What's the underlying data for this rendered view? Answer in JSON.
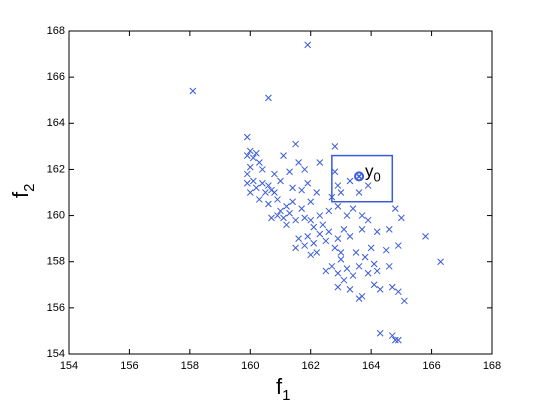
{
  "chart_data": {
    "type": "scatter",
    "xlabel": {
      "text": "f",
      "subscript": "1"
    },
    "ylabel": {
      "text": "f",
      "subscript": "2"
    },
    "xlim": [
      154,
      168
    ],
    "ylim": [
      154,
      168
    ],
    "xticks": [
      154,
      156,
      158,
      160,
      162,
      164,
      166,
      168
    ],
    "yticks": [
      154,
      156,
      158,
      160,
      162,
      164,
      166,
      168
    ],
    "color": "#3a5bd9",
    "x": [
      159.9,
      160.0,
      160.1,
      160.2,
      160.3,
      160.0,
      159.9,
      160.1,
      160.2,
      160.4,
      160.5,
      160.6,
      160.7,
      160.8,
      159.9,
      160.0,
      160.3,
      160.6,
      160.9,
      161.0,
      160.7,
      160.9,
      161.1,
      161.3,
      161.5,
      161.2,
      161.7,
      161.4,
      161.0,
      161.3,
      161.6,
      161.8,
      161.1,
      160.4,
      161.9,
      161.7,
      162.2,
      162.0,
      161.8,
      162.1,
      161.9,
      161.6,
      161.8,
      162.1,
      162.3,
      162.4,
      162.6,
      162.5,
      162.2,
      162.0,
      162.8,
      162.9,
      163.1,
      163.3,
      163.0,
      162.7,
      162.9,
      163.2,
      163.4,
      163.6,
      163.5,
      163.8,
      163.9,
      163.1,
      162.9,
      163.3,
      163.7,
      164.1,
      164.2,
      164.5,
      164.6,
      164.7,
      164.9,
      164.3,
      163.6,
      165.1,
      164.3,
      164.7,
      164.8,
      164.9,
      165.8,
      166.3,
      164.9,
      164.6,
      164.8,
      165.0,
      164.2,
      163.9,
      163.7,
      163.4,
      163.2,
      162.9,
      162.6,
      162.7,
      162.9,
      163.0,
      163.3,
      162.8,
      162.8,
      162.3,
      163.6,
      163.9,
      161.5,
      159.9,
      158.1,
      160.6,
      161.9,
      161.2,
      160.8,
      161.4,
      162.0,
      162.3,
      161.5,
      162.5,
      163.7,
      164.0,
      164.1,
      163.0
    ],
    "y": [
      162.6,
      162.8,
      162.5,
      162.7,
      162.3,
      162.1,
      161.8,
      161.5,
      161.2,
      161.4,
      161.0,
      161.3,
      161.1,
      161.0,
      161.4,
      161.0,
      160.7,
      160.5,
      160.7,
      160.2,
      159.9,
      160.0,
      159.9,
      160.1,
      159.8,
      159.6,
      160.3,
      160.6,
      161.5,
      161.9,
      162.3,
      162.0,
      162.6,
      162.0,
      161.4,
      161.1,
      161.0,
      160.6,
      159.9,
      159.5,
      159.1,
      159.0,
      158.7,
      158.8,
      159.2,
      159.6,
      159.3,
      158.9,
      158.4,
      158.3,
      158.6,
      159.0,
      159.4,
      159.1,
      158.1,
      157.8,
      157.5,
      157.7,
      157.4,
      157.8,
      158.4,
      158.2,
      157.5,
      157.2,
      156.9,
      156.8,
      156.5,
      157.0,
      157.6,
      158.5,
      157.8,
      156.9,
      156.7,
      156.8,
      156.4,
      156.3,
      154.9,
      154.8,
      154.6,
      154.6,
      159.1,
      158.0,
      158.7,
      159.4,
      160.3,
      159.9,
      159.3,
      159.8,
      160.0,
      160.3,
      160.0,
      160.4,
      160.2,
      160.8,
      161.3,
      161.0,
      161.5,
      161.9,
      163.0,
      162.3,
      161.0,
      161.3,
      163.1,
      163.4,
      165.4,
      165.1,
      167.4,
      160.4,
      161.8,
      161.2,
      159.8,
      160.0,
      158.6,
      157.6,
      159.4,
      158.6,
      157.9,
      158.4
    ],
    "highlight": {
      "label": {
        "text": "y",
        "subscript": "0"
      },
      "x": 163.6,
      "y": 161.7
    },
    "box": {
      "x": [
        162.7,
        164.7
      ],
      "y": [
        160.6,
        162.6
      ]
    }
  }
}
